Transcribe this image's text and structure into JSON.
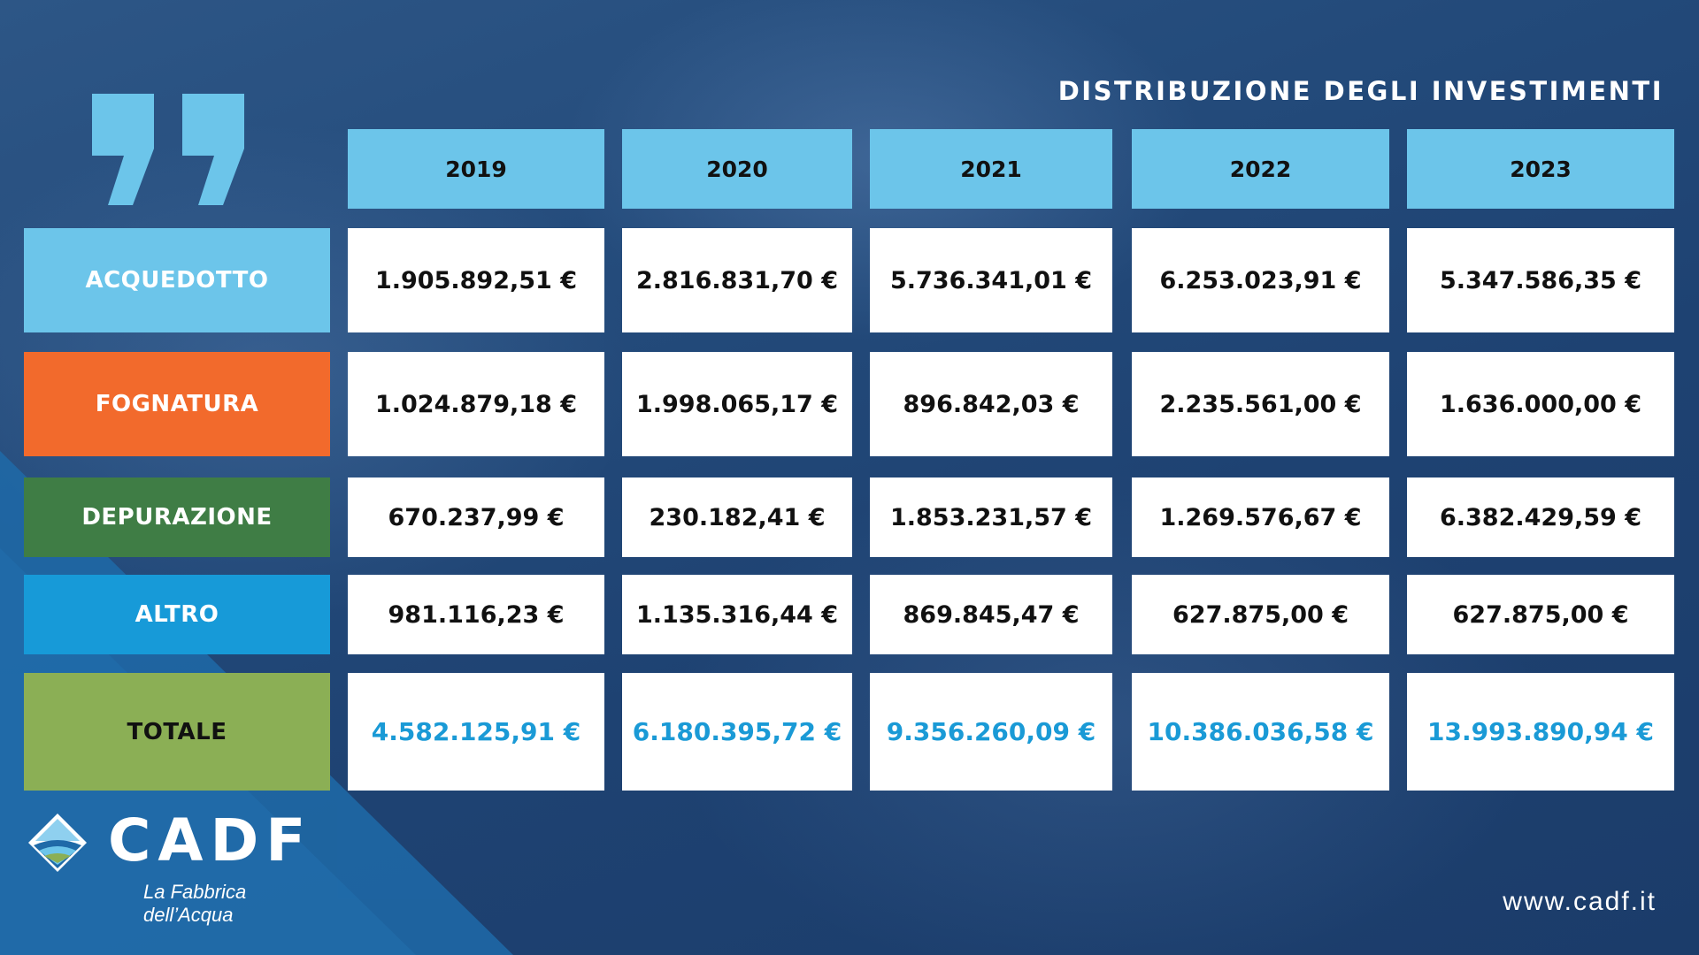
{
  "title": "DISTRIBUZIONE DEGLI INVESTIMENTI",
  "years": [
    "2019",
    "2020",
    "2021",
    "2022",
    "2023"
  ],
  "rows": [
    {
      "label": "ACQUEDOTTO",
      "color": "#6cc5ea",
      "values": [
        "1.905.892,51 €",
        "2.816.831,70 €",
        "5.736.341,01 €",
        "6.253.023,91 €",
        "5.347.586,35 €"
      ]
    },
    {
      "label": "FOGNATURA",
      "color": "#f26a2c",
      "values": [
        "1.024.879,18 €",
        "1.998.065,17 €",
        "896.842,03 €",
        "2.235.561,00 €",
        "1.636.000,00 €"
      ]
    },
    {
      "label": "DEPURAZIONE",
      "color": "#3f7d45",
      "values": [
        "670.237,99 €",
        "230.182,41 €",
        "1.853.231,57 €",
        "1.269.576,67 €",
        "6.382.429,59 €"
      ]
    },
    {
      "label": "ALTRO",
      "color": "#179ad8",
      "values": [
        "981.116,23 €",
        "1.135.316,44 €",
        "869.845,47 €",
        "627.875,00 €",
        "627.875,00 €"
      ]
    },
    {
      "label": "TOTALE",
      "color": "#8baf55",
      "values": [
        "4.582.125,91 €",
        "6.180.395,72 €",
        "9.356.260,09 €",
        "10.386.036,58 €",
        "13.993.890,94 €"
      ]
    }
  ],
  "logo": {
    "name": "CADF",
    "tagline": "La Fabbrica dell’Acqua"
  },
  "website": "www.cadf.it",
  "accent_total_color": "#1a9ad6",
  "quote_icon": "closing-quote-icon"
}
